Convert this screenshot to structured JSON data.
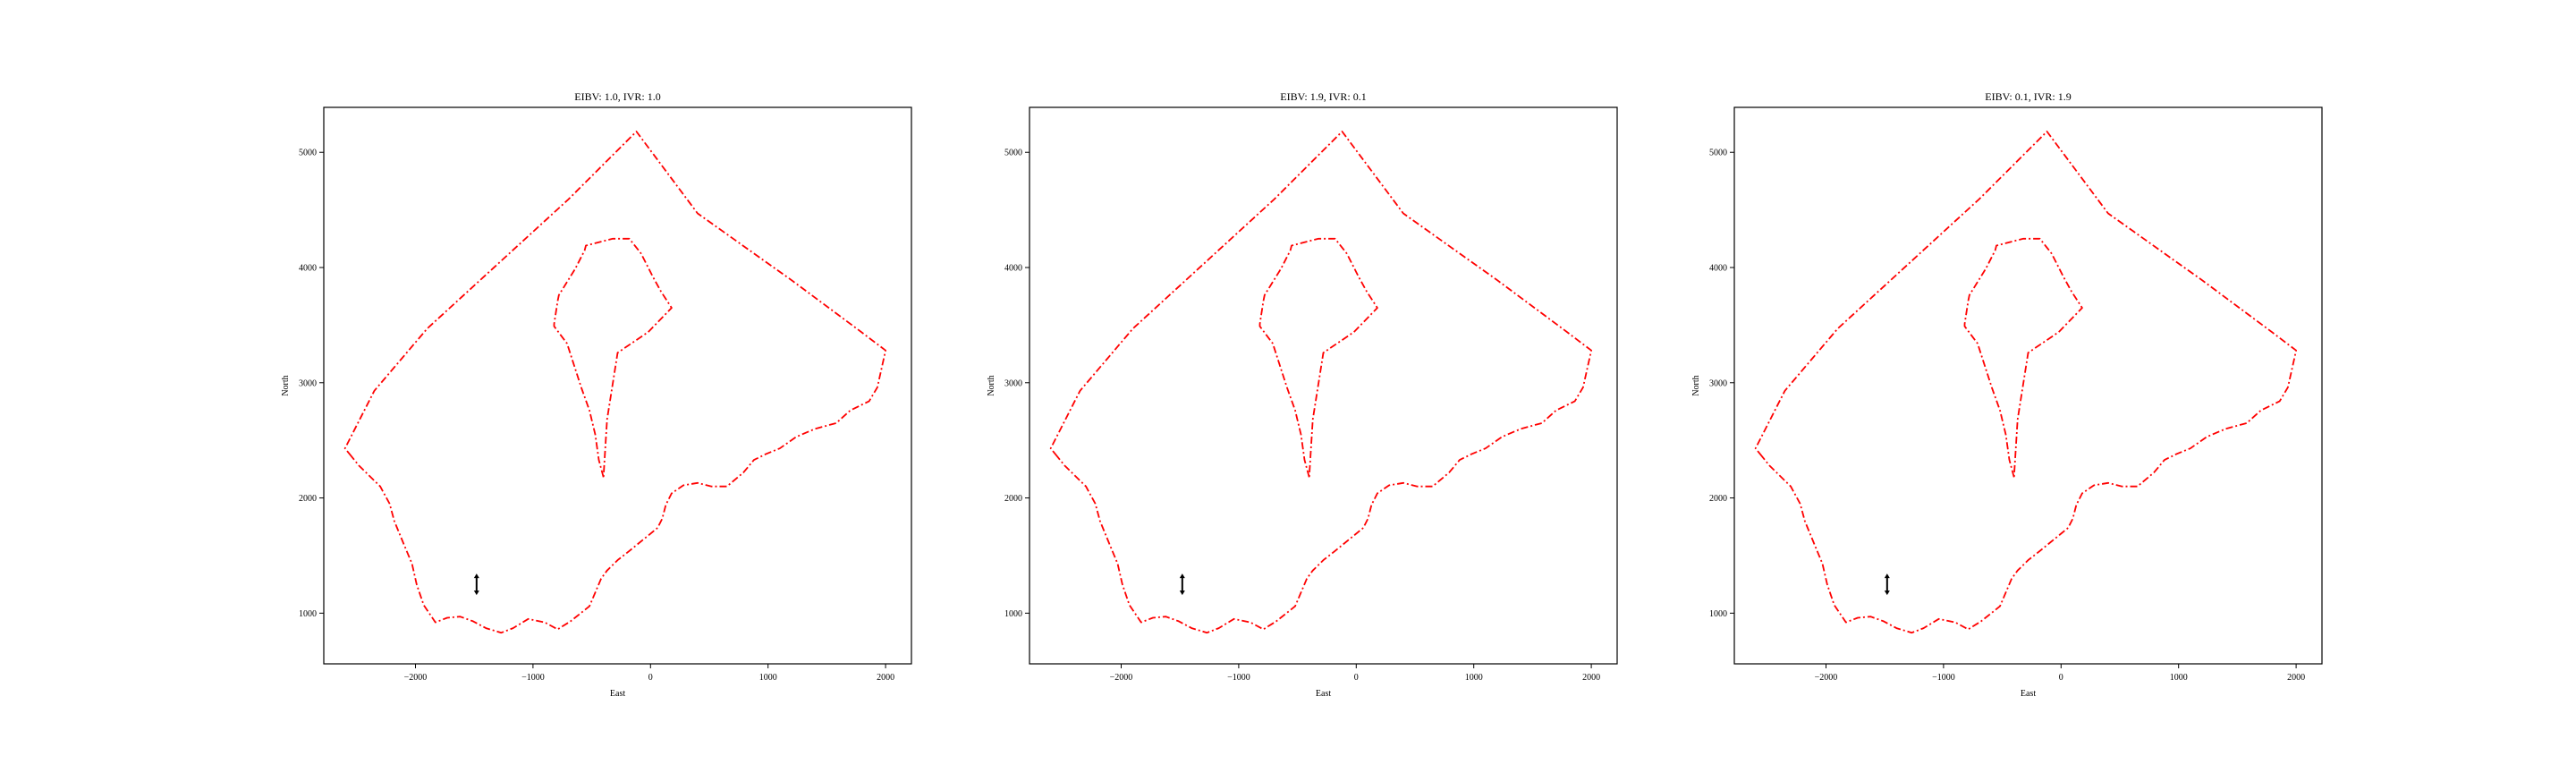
{
  "style": {
    "boundary_color": "#ff0000",
    "marker_color": "#000000",
    "axes_color": "#000000",
    "background": "#ffffff"
  },
  "chart_data": [
    {
      "type": "line",
      "title": "EIBV: 1.0, IVR: 1.0",
      "xlabel": "East",
      "ylabel": "North",
      "xlim": [
        -2780,
        2220
      ],
      "ylim": [
        560,
        5390
      ],
      "xticks": [
        -2000,
        -1000,
        0,
        1000,
        2000
      ],
      "xtick_labels": [
        "−2000",
        "−1000",
        "0",
        "1000",
        "2000"
      ],
      "yticks": [
        1000,
        2000,
        3000,
        4000,
        5000
      ],
      "ytick_labels": [
        "1000",
        "2000",
        "3000",
        "4000",
        "5000"
      ],
      "grid": false,
      "series": [
        {
          "style": "dash-dot",
          "x": [
            -2560,
            -2480,
            -2300,
            -2220,
            -2180,
            -2100,
            -2030,
            -1990,
            -1930,
            -1830,
            -1730,
            -1620,
            -1510,
            -1400,
            -1270,
            -1170,
            -1040,
            -900,
            -790,
            -680,
            -520,
            -420,
            -370,
            -280,
            -180,
            -60,
            60,
            100,
            130,
            180,
            280,
            400,
            520,
            650,
            790,
            880,
            980,
            1100,
            1240,
            1400,
            1580,
            1700,
            1860,
            1930,
            2000,
            1780,
            1200,
            400,
            -120,
            -700,
            -1300,
            -1900,
            -2350,
            -2600,
            -2560
          ],
          "y": [
            2380,
            2280,
            2100,
            1950,
            1800,
            1600,
            1430,
            1250,
            1070,
            920,
            960,
            970,
            930,
            870,
            830,
            870,
            950,
            920,
            860,
            930,
            1060,
            1300,
            1370,
            1460,
            1540,
            1640,
            1740,
            1820,
            1940,
            2040,
            2110,
            2130,
            2100,
            2100,
            2220,
            2330,
            2380,
            2430,
            2530,
            2600,
            2650,
            2760,
            2840,
            2960,
            3280,
            3450,
            3890,
            4470,
            5180,
            4590,
            4030,
            3470,
            2930,
            2430,
            2380
          ]
        },
        {
          "style": "dash-dot",
          "x": [
            -400,
            -440,
            -470,
            -520,
            -590,
            -650,
            -710,
            -820,
            -820,
            -790,
            -780,
            -640,
            -560,
            -550,
            -400,
            -320,
            -180,
            -80,
            20,
            90,
            180,
            -20,
            -280,
            -370,
            -400
          ],
          "y": [
            2180,
            2330,
            2550,
            2760,
            2960,
            3150,
            3340,
            3490,
            3510,
            3710,
            3760,
            3990,
            4150,
            4190,
            4230,
            4250,
            4250,
            4120,
            3920,
            3790,
            3650,
            3440,
            3260,
            2680,
            2180
          ]
        }
      ],
      "marker": {
        "type": "vertical-double-arrow",
        "x": -1480,
        "y": 1250
      }
    },
    {
      "type": "line",
      "title": "EIBV: 1.9, IVR: 0.1",
      "xlabel": "East",
      "ylabel": "North",
      "xlim": [
        -2780,
        2220
      ],
      "ylim": [
        560,
        5390
      ],
      "xticks": [
        -2000,
        -1000,
        0,
        1000,
        2000
      ],
      "xtick_labels": [
        "−2000",
        "−1000",
        "0",
        "1000",
        "2000"
      ],
      "yticks": [
        1000,
        2000,
        3000,
        4000,
        5000
      ],
      "ytick_labels": [
        "1000",
        "2000",
        "3000",
        "4000",
        "5000"
      ],
      "grid": false,
      "series": [
        {
          "style": "dash-dot",
          "x": [
            -2560,
            -2480,
            -2300,
            -2220,
            -2180,
            -2100,
            -2030,
            -1990,
            -1930,
            -1830,
            -1730,
            -1620,
            -1510,
            -1400,
            -1270,
            -1170,
            -1040,
            -900,
            -790,
            -680,
            -520,
            -420,
            -370,
            -280,
            -180,
            -60,
            60,
            100,
            130,
            180,
            280,
            400,
            520,
            650,
            790,
            880,
            980,
            1100,
            1240,
            1400,
            1580,
            1700,
            1860,
            1930,
            2000,
            1780,
            1200,
            400,
            -120,
            -700,
            -1300,
            -1900,
            -2350,
            -2600,
            -2560
          ],
          "y": [
            2380,
            2280,
            2100,
            1950,
            1800,
            1600,
            1430,
            1250,
            1070,
            920,
            960,
            970,
            930,
            870,
            830,
            870,
            950,
            920,
            860,
            930,
            1060,
            1300,
            1370,
            1460,
            1540,
            1640,
            1740,
            1820,
            1940,
            2040,
            2110,
            2130,
            2100,
            2100,
            2220,
            2330,
            2380,
            2430,
            2530,
            2600,
            2650,
            2760,
            2840,
            2960,
            3280,
            3450,
            3890,
            4470,
            5180,
            4590,
            4030,
            3470,
            2930,
            2430,
            2380
          ]
        },
        {
          "style": "dash-dot",
          "x": [
            -400,
            -440,
            -470,
            -520,
            -590,
            -650,
            -710,
            -820,
            -820,
            -790,
            -780,
            -640,
            -560,
            -550,
            -400,
            -320,
            -180,
            -80,
            20,
            90,
            180,
            -20,
            -280,
            -370,
            -400
          ],
          "y": [
            2180,
            2330,
            2550,
            2760,
            2960,
            3150,
            3340,
            3490,
            3510,
            3710,
            3760,
            3990,
            4150,
            4190,
            4230,
            4250,
            4250,
            4120,
            3920,
            3790,
            3650,
            3440,
            3260,
            2680,
            2180
          ]
        }
      ],
      "marker": {
        "type": "vertical-double-arrow",
        "x": -1480,
        "y": 1250
      }
    },
    {
      "type": "line",
      "title": "EIBV: 0.1, IVR: 1.9",
      "xlabel": "East",
      "ylabel": "North",
      "xlim": [
        -2780,
        2220
      ],
      "ylim": [
        560,
        5390
      ],
      "xticks": [
        -2000,
        -1000,
        0,
        1000,
        2000
      ],
      "xtick_labels": [
        "−2000",
        "−1000",
        "0",
        "1000",
        "2000"
      ],
      "yticks": [
        1000,
        2000,
        3000,
        4000,
        5000
      ],
      "ytick_labels": [
        "1000",
        "2000",
        "3000",
        "4000",
        "5000"
      ],
      "grid": false,
      "series": [
        {
          "style": "dash-dot",
          "x": [
            -2560,
            -2480,
            -2300,
            -2220,
            -2180,
            -2100,
            -2030,
            -1990,
            -1930,
            -1830,
            -1730,
            -1620,
            -1510,
            -1400,
            -1270,
            -1170,
            -1040,
            -900,
            -790,
            -680,
            -520,
            -420,
            -370,
            -280,
            -180,
            -60,
            60,
            100,
            130,
            180,
            280,
            400,
            520,
            650,
            790,
            880,
            980,
            1100,
            1240,
            1400,
            1580,
            1700,
            1860,
            1930,
            2000,
            1780,
            1200,
            400,
            -120,
            -700,
            -1300,
            -1900,
            -2350,
            -2600,
            -2560
          ],
          "y": [
            2380,
            2280,
            2100,
            1950,
            1800,
            1600,
            1430,
            1250,
            1070,
            920,
            960,
            970,
            930,
            870,
            830,
            870,
            950,
            920,
            860,
            930,
            1060,
            1300,
            1370,
            1460,
            1540,
            1640,
            1740,
            1820,
            1940,
            2040,
            2110,
            2130,
            2100,
            2100,
            2220,
            2330,
            2380,
            2430,
            2530,
            2600,
            2650,
            2760,
            2840,
            2960,
            3280,
            3450,
            3890,
            4470,
            5180,
            4590,
            4030,
            3470,
            2930,
            2430,
            2380
          ]
        },
        {
          "style": "dash-dot",
          "x": [
            -400,
            -440,
            -470,
            -520,
            -590,
            -650,
            -710,
            -820,
            -820,
            -790,
            -780,
            -640,
            -560,
            -550,
            -400,
            -320,
            -180,
            -80,
            20,
            90,
            180,
            -20,
            -280,
            -370,
            -400
          ],
          "y": [
            2180,
            2330,
            2550,
            2760,
            2960,
            3150,
            3340,
            3490,
            3510,
            3710,
            3760,
            3990,
            4150,
            4190,
            4230,
            4250,
            4250,
            4120,
            3920,
            3790,
            3650,
            3440,
            3260,
            2680,
            2180
          ]
        }
      ],
      "marker": {
        "type": "vertical-double-arrow",
        "x": -1480,
        "y": 1250
      }
    }
  ]
}
